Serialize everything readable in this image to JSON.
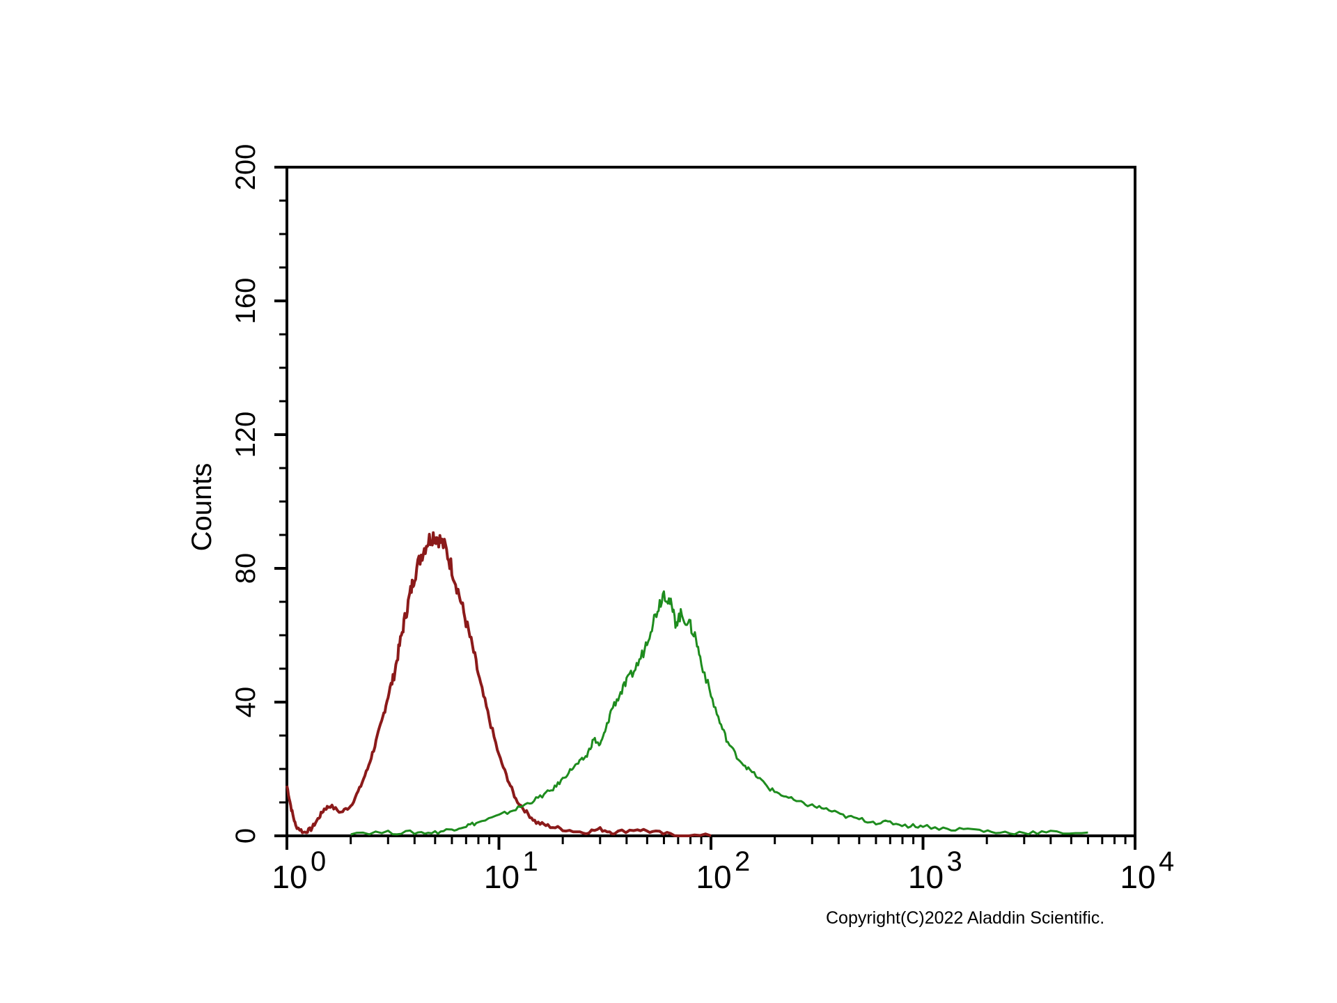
{
  "chart_data": {
    "type": "line",
    "title": "",
    "xlabel": "",
    "ylabel": "Counts",
    "x_scale": "log",
    "xlim": [
      1,
      10000
    ],
    "ylim": [
      0,
      200
    ],
    "grid": false,
    "legend": "none",
    "y_ticks": [
      "0",
      "40",
      "80",
      "120",
      "160",
      "200"
    ],
    "x_ticks": [
      {
        "base": "10",
        "exp": "0",
        "value": 1
      },
      {
        "base": "10",
        "exp": "1",
        "value": 10
      },
      {
        "base": "10",
        "exp": "2",
        "value": 100
      },
      {
        "base": "10",
        "exp": "3",
        "value": 1000
      },
      {
        "base": "10",
        "exp": "4",
        "value": 10000
      }
    ],
    "series": [
      {
        "color": "#8b1a1a",
        "points": [
          [
            1.0,
            15
          ],
          [
            1.05,
            8
          ],
          [
            1.1,
            3
          ],
          [
            1.2,
            1
          ],
          [
            1.3,
            2
          ],
          [
            1.4,
            5
          ],
          [
            1.5,
            8
          ],
          [
            1.6,
            9
          ],
          [
            1.8,
            7
          ],
          [
            2.0,
            9
          ],
          [
            2.2,
            14
          ],
          [
            2.4,
            20
          ],
          [
            2.6,
            27
          ],
          [
            2.8,
            34
          ],
          [
            3.0,
            42
          ],
          [
            3.2,
            48
          ],
          [
            3.4,
            57
          ],
          [
            3.6,
            65
          ],
          [
            3.8,
            72
          ],
          [
            4.0,
            78
          ],
          [
            4.3,
            84
          ],
          [
            4.6,
            88
          ],
          [
            4.9,
            90
          ],
          [
            5.2,
            89
          ],
          [
            5.6,
            86
          ],
          [
            6.0,
            80
          ],
          [
            6.5,
            72
          ],
          [
            7.0,
            64
          ],
          [
            7.6,
            55
          ],
          [
            8.2,
            45
          ],
          [
            9.0,
            35
          ],
          [
            10.0,
            24
          ],
          [
            11.0,
            17
          ],
          [
            12.0,
            11
          ],
          [
            13.5,
            7
          ],
          [
            15.0,
            4
          ],
          [
            17.0,
            3
          ],
          [
            20.0,
            2
          ],
          [
            25.0,
            1
          ],
          [
            30.0,
            2
          ],
          [
            35.0,
            1
          ],
          [
            45.0,
            2
          ],
          [
            55.0,
            1
          ],
          [
            70.0,
            0
          ],
          [
            100.0,
            0
          ]
        ]
      },
      {
        "color": "#1e8c1e",
        "points": [
          [
            2.0,
            1
          ],
          [
            3.0,
            1
          ],
          [
            4.0,
            1
          ],
          [
            5.0,
            1
          ],
          [
            6.0,
            2
          ],
          [
            7.0,
            3
          ],
          [
            8.0,
            4
          ],
          [
            10.0,
            6
          ],
          [
            12.0,
            8
          ],
          [
            14.0,
            10
          ],
          [
            16.0,
            12
          ],
          [
            18.0,
            14
          ],
          [
            20.0,
            17
          ],
          [
            22.0,
            20
          ],
          [
            24.0,
            22
          ],
          [
            26.0,
            24
          ],
          [
            28.0,
            29
          ],
          [
            30.0,
            27
          ],
          [
            32.0,
            32
          ],
          [
            34.0,
            38
          ],
          [
            37.0,
            42
          ],
          [
            40.0,
            46
          ],
          [
            44.0,
            50
          ],
          [
            48.0,
            55
          ],
          [
            52.0,
            62
          ],
          [
            56.0,
            68
          ],
          [
            60.0,
            73
          ],
          [
            64.0,
            70
          ],
          [
            68.0,
            64
          ],
          [
            72.0,
            66
          ],
          [
            78.0,
            64
          ],
          [
            84.0,
            60
          ],
          [
            90.0,
            52
          ],
          [
            100.0,
            42
          ],
          [
            110.0,
            34
          ],
          [
            120.0,
            28
          ],
          [
            135.0,
            23
          ],
          [
            150.0,
            20
          ],
          [
            170.0,
            17
          ],
          [
            190.0,
            14
          ],
          [
            220.0,
            12
          ],
          [
            260.0,
            10
          ],
          [
            300.0,
            9
          ],
          [
            350.0,
            8
          ],
          [
            420.0,
            6
          ],
          [
            500.0,
            5
          ],
          [
            600.0,
            4
          ],
          [
            700.0,
            4
          ],
          [
            850.0,
            3
          ],
          [
            1000.0,
            3
          ],
          [
            1300.0,
            2
          ],
          [
            1700.0,
            2
          ],
          [
            2200.0,
            1
          ],
          [
            3000.0,
            1
          ],
          [
            4000.0,
            1
          ],
          [
            6000.0,
            1
          ]
        ]
      }
    ]
  },
  "footer": {
    "copyright": "Copyright(C)2022 Aladdin Scientific."
  }
}
